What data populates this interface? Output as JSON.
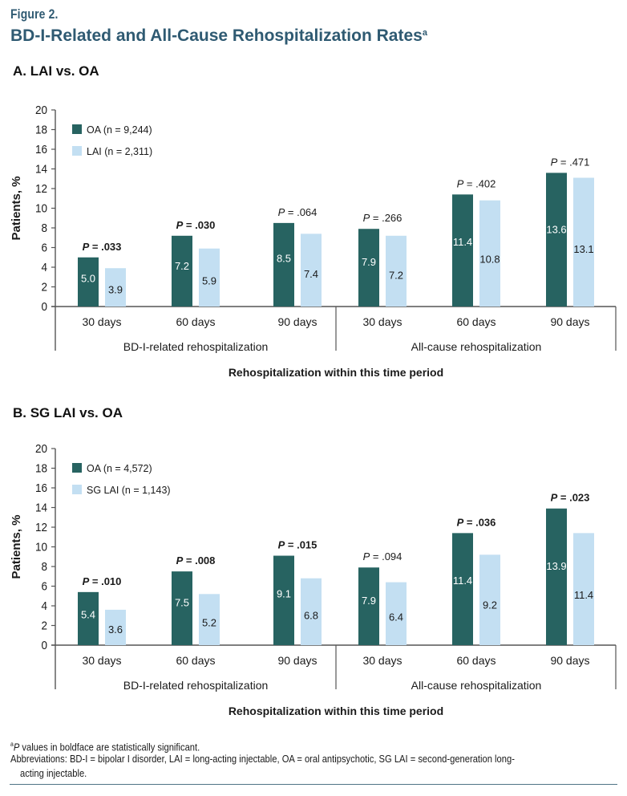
{
  "figure": {
    "label": "Figure 2.",
    "title": "BD-I-Related and All-Cause Rehospitalization Rates",
    "title_superscript": "a"
  },
  "colors": {
    "oa": "#276361",
    "lai": "#c3dff2",
    "title": "#2f5a72",
    "axis": "#555555"
  },
  "chart_data": [
    {
      "type": "bar",
      "panel_title": "A. LAI vs. OA",
      "ylabel": "Patients, %",
      "xlabel": "Rehospitalization within this time period",
      "ylim": [
        0,
        20
      ],
      "yticks": [
        0,
        2,
        4,
        6,
        8,
        10,
        12,
        14,
        16,
        18,
        20
      ],
      "legend_position": "top-left",
      "categories": [
        "30 days",
        "60 days",
        "90 days",
        "30 days",
        "60 days",
        "90 days"
      ],
      "groups": [
        {
          "label": "BD-I-related rehospitalization",
          "category_indices": [
            0,
            1,
            2
          ]
        },
        {
          "label": "All-cause rehospitalization",
          "category_indices": [
            3,
            4,
            5
          ]
        }
      ],
      "series": [
        {
          "name": "OA (n = 9,244)",
          "key": "oa",
          "values": [
            5.0,
            7.2,
            8.5,
            7.9,
            11.4,
            13.6
          ],
          "labels": [
            "5.0",
            "7.2",
            "8.5",
            "7.9",
            "11.4",
            "13.6"
          ]
        },
        {
          "name": "LAI (n = 2,311)",
          "key": "lai",
          "values": [
            3.9,
            5.9,
            7.4,
            7.2,
            10.8,
            13.1
          ],
          "labels": [
            "3.9",
            "5.9",
            "7.4",
            "7.2",
            "10.8",
            "13.1"
          ]
        }
      ],
      "p_values": [
        {
          "text": ".033",
          "bold": true
        },
        {
          "text": ".030",
          "bold": true
        },
        {
          "text": ".064",
          "bold": false
        },
        {
          "text": ".266",
          "bold": false
        },
        {
          "text": ".402",
          "bold": false
        },
        {
          "text": ".471",
          "bold": false
        }
      ]
    },
    {
      "type": "bar",
      "panel_title": "B. SG LAI vs. OA",
      "ylabel": "Patients, %",
      "xlabel": "Rehospitalization within this time period",
      "ylim": [
        0,
        20
      ],
      "yticks": [
        0,
        2,
        4,
        6,
        8,
        10,
        12,
        14,
        16,
        18,
        20
      ],
      "legend_position": "top-left",
      "categories": [
        "30 days",
        "60 days",
        "90 days",
        "30 days",
        "60 days",
        "90 days"
      ],
      "groups": [
        {
          "label": "BD-I-related rehospitalization",
          "category_indices": [
            0,
            1,
            2
          ]
        },
        {
          "label": "All-cause rehospitalization",
          "category_indices": [
            3,
            4,
            5
          ]
        }
      ],
      "series": [
        {
          "name": "OA (n = 4,572)",
          "key": "oa",
          "values": [
            5.4,
            7.5,
            9.1,
            7.9,
            11.4,
            13.9
          ],
          "labels": [
            "5.4",
            "7.5",
            "9.1",
            "7.9",
            "11.4",
            "13.9"
          ]
        },
        {
          "name": "SG LAI (n = 1,143)",
          "key": "lai",
          "values": [
            3.6,
            5.2,
            6.8,
            6.4,
            9.2,
            11.4
          ],
          "labels": [
            "3.6",
            "5.2",
            "6.8",
            "6.4",
            "9.2",
            "11.4"
          ]
        }
      ],
      "p_values": [
        {
          "text": ".010",
          "bold": true
        },
        {
          "text": ".008",
          "bold": true
        },
        {
          "text": ".015",
          "bold": true
        },
        {
          "text": ".094",
          "bold": false
        },
        {
          "text": ".036",
          "bold": true
        },
        {
          "text": ".023",
          "bold": true
        }
      ]
    }
  ],
  "p_prefix": "P",
  "p_equals": " = ",
  "footnotes": {
    "a_marker": "a",
    "a_italic": "P",
    "a_text": " values in boldface are statistically significant.",
    "abbreviations_line1": "Abbreviations: BD-I = bipolar I disorder, LAI = long-acting injectable, OA = oral antipsychotic, SG LAI = second-generation long-",
    "abbreviations_line2": "acting injectable."
  }
}
